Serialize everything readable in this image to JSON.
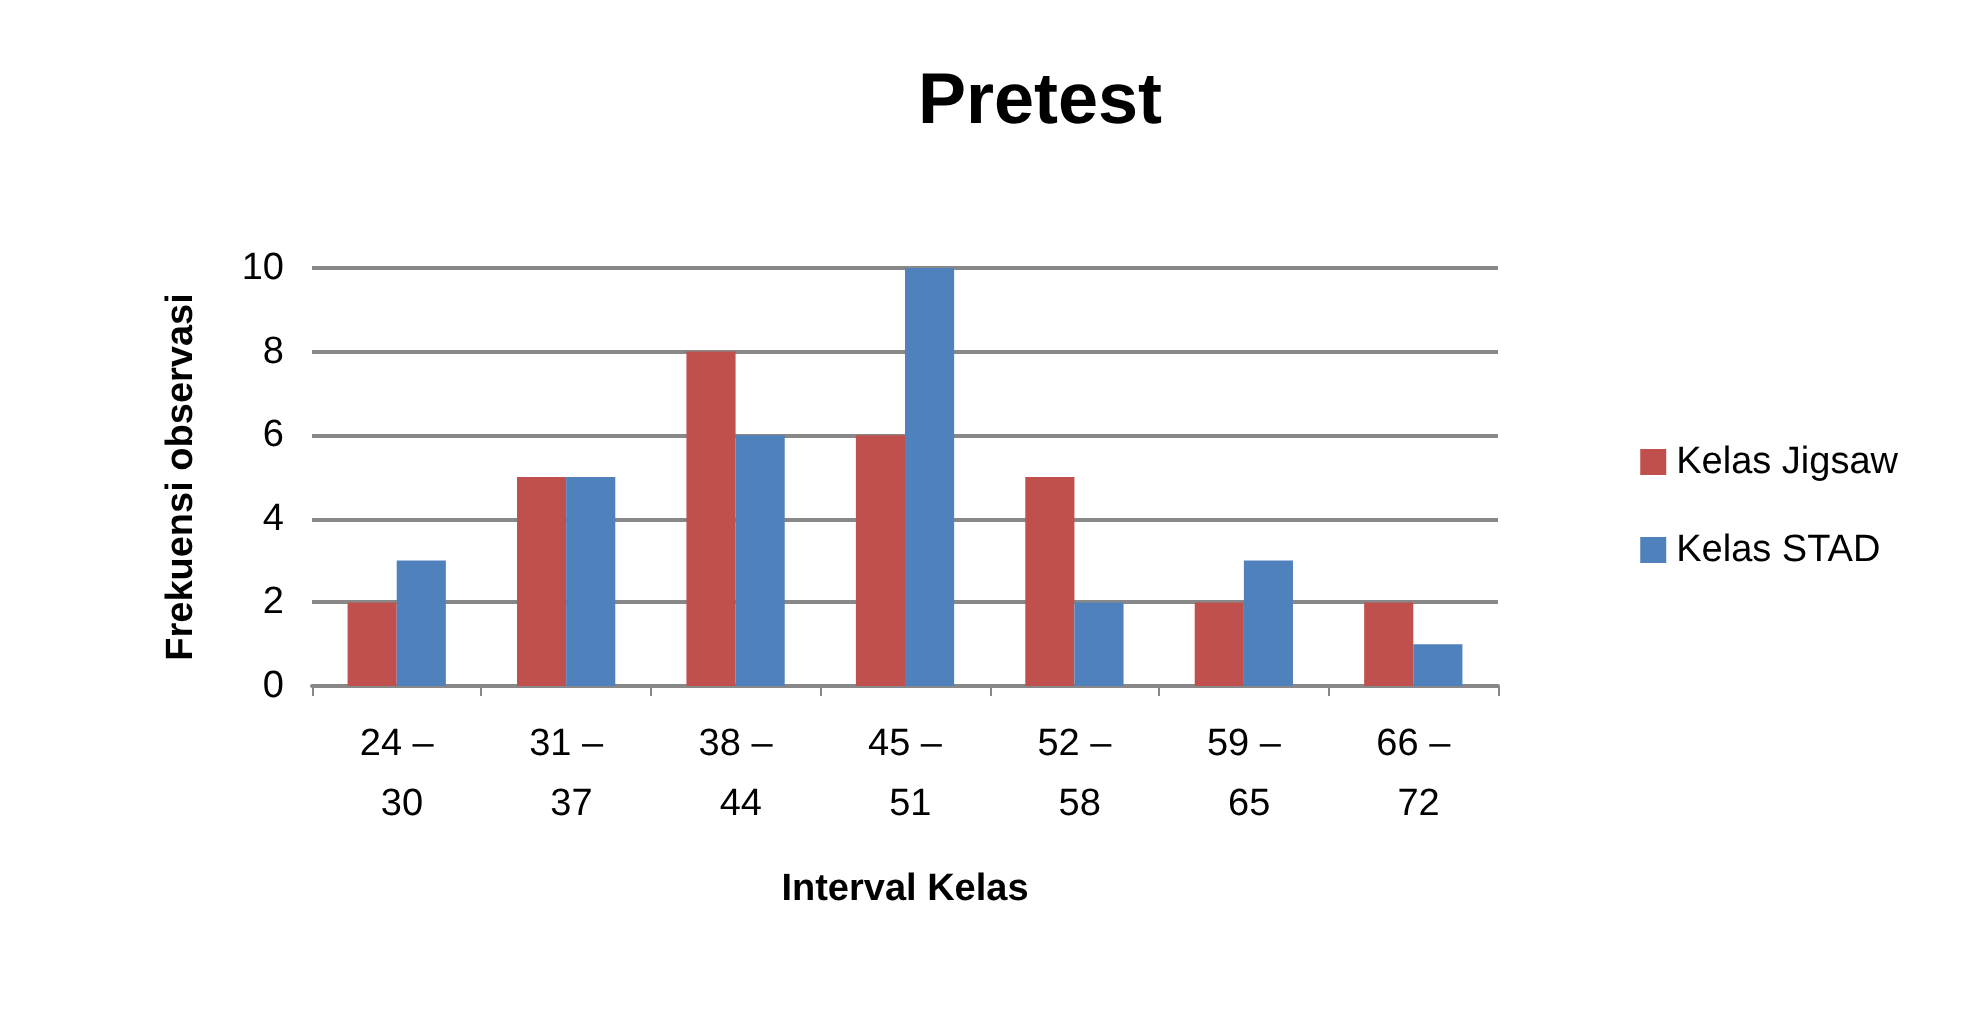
{
  "chart_data": {
    "type": "bar",
    "title": "Pretest",
    "xlabel": "Interval Kelas",
    "ylabel": "Frekuensi observasi",
    "categories": [
      "24 – 30",
      "31 – 37",
      "38 – 44",
      "45 – 51",
      "52 – 58",
      "59 – 65",
      "66 – 72"
    ],
    "series": [
      {
        "name": "Kelas Jigsaw",
        "color": "#c0504d",
        "values": [
          2,
          5,
          8,
          6,
          5,
          2,
          2
        ]
      },
      {
        "name": "Kelas STAD",
        "color": "#4f81bd",
        "values": [
          3,
          5,
          6,
          10,
          2,
          3,
          1
        ]
      }
    ],
    "ylim": [
      0,
      10
    ],
    "yticks": [
      0,
      2,
      4,
      6,
      8,
      10
    ],
    "grid": "y",
    "legend": "right"
  }
}
